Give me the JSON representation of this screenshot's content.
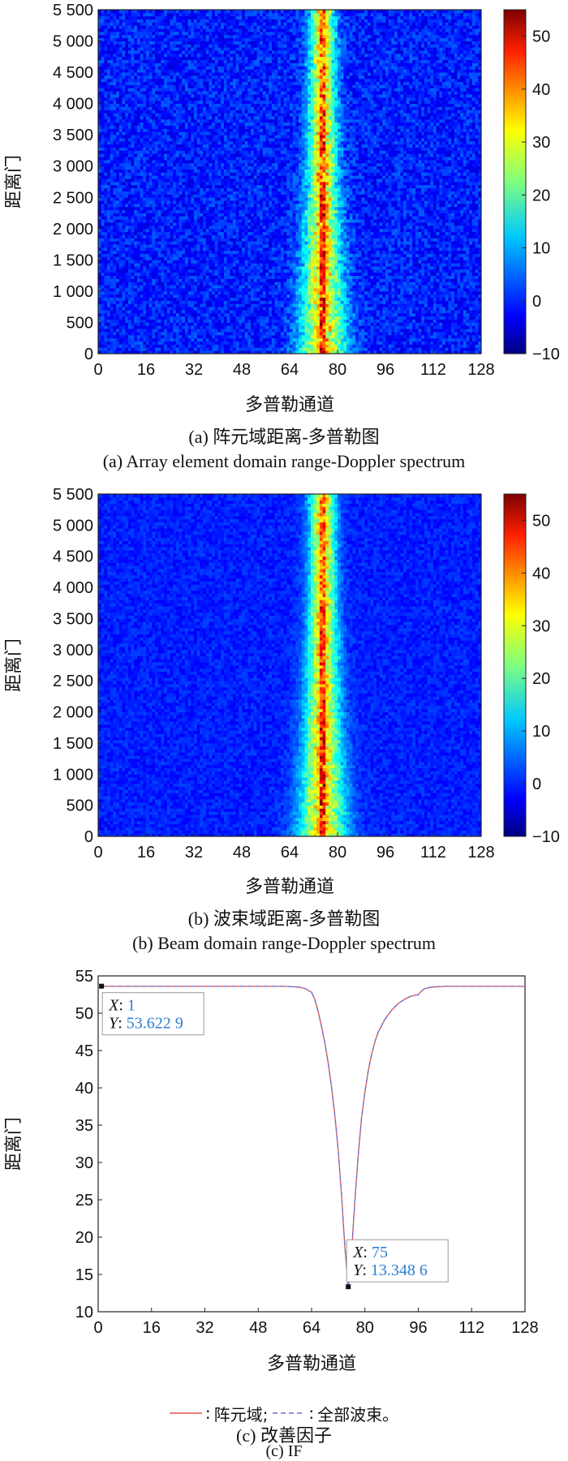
{
  "chart_data": [
    {
      "type": "heatmap",
      "panel": "a",
      "title": "",
      "caption_cn": "(a) 阵元域距离-多普勒图",
      "caption_en": "(a) Array element domain range-Doppler spectrum",
      "xlabel": "多普勒通道",
      "ylabel": "距离门",
      "xlim": [
        0,
        128
      ],
      "ylim": [
        0,
        5500
      ],
      "xticks": [
        0,
        16,
        32,
        48,
        64,
        80,
        96,
        112,
        128
      ],
      "xtick_labels": [
        "0",
        "16",
        "32",
        "48",
        "64",
        "80",
        "96",
        "112",
        "128"
      ],
      "yticks": [
        0,
        500,
        1000,
        1500,
        2000,
        2500,
        3000,
        3500,
        4000,
        4500,
        5000,
        5500
      ],
      "ytick_labels": [
        "0",
        "500",
        "1 000",
        "1 500",
        "2 000",
        "2 500",
        "3 000",
        "3 500",
        "4 000",
        "4 500",
        "5 000",
        "5 500"
      ],
      "colorbar": {
        "min": -10,
        "max": 55,
        "ticks": [
          -10,
          0,
          10,
          20,
          30,
          40,
          50
        ],
        "tick_labels": [
          "−10",
          "0",
          "10",
          "20",
          "30",
          "40",
          "50"
        ],
        "colormap": "jet"
      },
      "clutter_ridge": {
        "center_doppler_channel": 75,
        "peak_value": 55,
        "background_level": 0,
        "ridge_level": 32,
        "ridge_halfwidth_channels": 3
      }
    },
    {
      "type": "heatmap",
      "panel": "b",
      "title": "",
      "caption_cn": "(b) 波束域距离-多普勒图",
      "caption_en": "(b) Beam domain range-Doppler spectrum",
      "xlabel": "多普勒通道",
      "ylabel": "距离门",
      "xlim": [
        0,
        128
      ],
      "ylim": [
        0,
        5500
      ],
      "xticks": [
        0,
        16,
        32,
        48,
        64,
        80,
        96,
        112,
        128
      ],
      "xtick_labels": [
        "0",
        "16",
        "32",
        "48",
        "64",
        "80",
        "96",
        "112",
        "128"
      ],
      "yticks": [
        0,
        500,
        1000,
        1500,
        2000,
        2500,
        3000,
        3500,
        4000,
        4500,
        5000,
        5500
      ],
      "ytick_labels": [
        "0",
        "500",
        "1 000",
        "1 500",
        "2 000",
        "2 500",
        "3 000",
        "3 500",
        "4 000",
        "4 500",
        "5 000",
        "5 500"
      ],
      "colorbar": {
        "min": -10,
        "max": 55,
        "ticks": [
          -10,
          0,
          10,
          20,
          30,
          40,
          50
        ],
        "tick_labels": [
          "−10",
          "0",
          "10",
          "20",
          "30",
          "40",
          "50"
        ],
        "colormap": "jet"
      },
      "clutter_ridge": {
        "center_doppler_channel": 75,
        "peak_value": 55,
        "background_level": 0,
        "ridge_level": 32,
        "ridge_halfwidth_channels": 3
      }
    },
    {
      "type": "line",
      "panel": "c",
      "title": "",
      "caption_cn": "(c) 改善因子",
      "caption_en": "(c) IF",
      "xlabel": "多普勒通道",
      "ylabel": "距离门",
      "xlim": [
        0,
        128
      ],
      "ylim": [
        10,
        55
      ],
      "xticks": [
        0,
        16,
        32,
        48,
        64,
        80,
        96,
        112,
        128
      ],
      "xtick_labels": [
        "0",
        "16",
        "32",
        "48",
        "64",
        "80",
        "96",
        "112",
        "128"
      ],
      "yticks": [
        10,
        15,
        20,
        25,
        30,
        35,
        40,
        45,
        50,
        55
      ],
      "ytick_labels": [
        "10",
        "15",
        "20",
        "25",
        "30",
        "35",
        "40",
        "45",
        "50",
        "55"
      ],
      "x": [
        1,
        8,
        16,
        24,
        32,
        40,
        48,
        56,
        60,
        62,
        64,
        65,
        66,
        67,
        68,
        69,
        70,
        71,
        72,
        73,
        74,
        75,
        76,
        77,
        78,
        79,
        80,
        81,
        82,
        83,
        84,
        86,
        88,
        90,
        92,
        94,
        95,
        96,
        97,
        98,
        100,
        104,
        112,
        120,
        128
      ],
      "series": [
        {
          "name": "阵元域;",
          "color": "#e8504a",
          "dash": "solid",
          "values": [
            53.6,
            53.6,
            53.6,
            53.6,
            53.6,
            53.6,
            53.6,
            53.6,
            53.5,
            53.3,
            52.8,
            51.8,
            50.2,
            48.2,
            46.0,
            43.3,
            40.0,
            36.2,
            31.5,
            25.5,
            18.5,
            13.35,
            18.0,
            25.0,
            31.0,
            36.0,
            39.5,
            42.3,
            44.5,
            46.2,
            47.5,
            49.2,
            50.4,
            51.3,
            51.9,
            52.3,
            52.4,
            52.5,
            53.0,
            53.3,
            53.5,
            53.6,
            53.6,
            53.6,
            53.6
          ]
        },
        {
          "name": "全部波束。",
          "color": "#6a6fd6",
          "dash": "dashed",
          "values": [
            53.6,
            53.6,
            53.6,
            53.6,
            53.6,
            53.6,
            53.6,
            53.6,
            53.5,
            53.3,
            52.8,
            51.8,
            50.2,
            48.2,
            46.0,
            43.3,
            40.0,
            36.2,
            31.5,
            25.5,
            18.5,
            13.35,
            18.0,
            25.0,
            31.0,
            36.0,
            39.5,
            42.3,
            44.5,
            46.2,
            47.5,
            49.2,
            50.4,
            51.3,
            51.9,
            52.3,
            52.4,
            52.5,
            53.0,
            53.3,
            53.5,
            53.6,
            53.6,
            53.6,
            53.6
          ]
        }
      ],
      "datatips": [
        {
          "x": 1,
          "y": 53.6229,
          "x_label": "X",
          "y_label": "Y",
          "x_text": "1",
          "y_text": "53.622 9"
        },
        {
          "x": 75,
          "y": 13.3486,
          "x_label": "X",
          "y_label": "Y",
          "x_text": "75",
          "y_text": "13.348 6"
        }
      ],
      "legend_placement": "bottom-center",
      "legend_prefix": ":"
    }
  ]
}
